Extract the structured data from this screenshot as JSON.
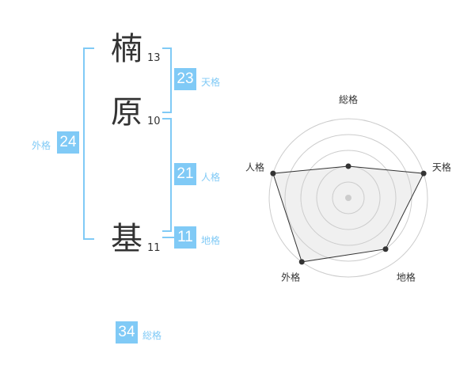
{
  "name": {
    "characters": [
      {
        "char": "楠",
        "strokes": "13"
      },
      {
        "char": "原",
        "strokes": "10"
      },
      {
        "char": "基",
        "strokes": "11"
      }
    ]
  },
  "scores": {
    "tenkaku": {
      "value": "23",
      "label": "天格"
    },
    "jinkaku": {
      "value": "21",
      "label": "人格"
    },
    "chikaku": {
      "value": "11",
      "label": "地格"
    },
    "gaikaku": {
      "value": "24",
      "label": "外格"
    },
    "soukaku": {
      "value": "34",
      "label": "総格"
    }
  },
  "colors": {
    "accent": "#80caf6",
    "text": "#333333",
    "radar_fill": "#f0f0f0"
  },
  "chart_data": {
    "type": "radar",
    "axes": [
      "総格",
      "天格",
      "地格",
      "外格",
      "人格"
    ],
    "values": [
      2,
      5,
      4,
      5,
      5
    ],
    "range": [
      0,
      5
    ],
    "rings": 5
  }
}
